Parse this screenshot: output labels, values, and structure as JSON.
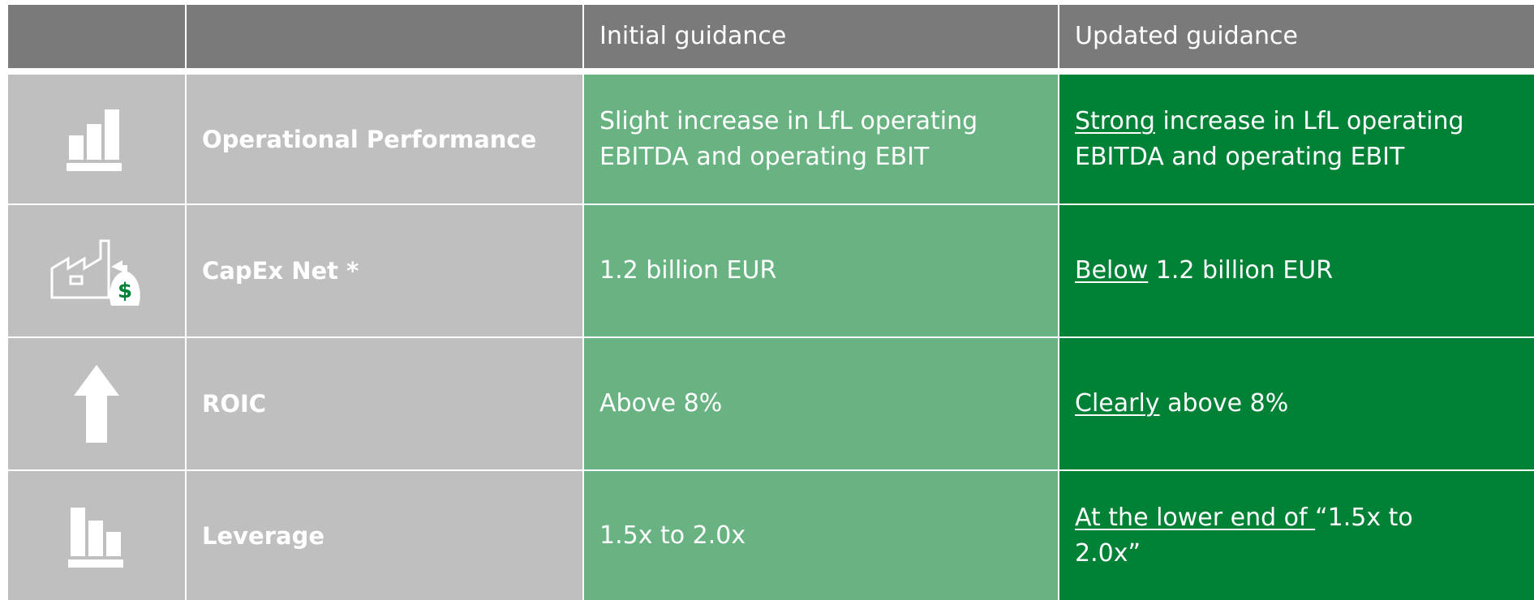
{
  "table": {
    "header": [
      "Initial guidance",
      "Updated guidance"
    ],
    "rows": [
      {
        "label": "Operational Performance",
        "initial": "Slight increase in LfL operating EBITDA and operating EBIT",
        "updated": {
          "emphasis": "Strong",
          "text": " increase in LfL operating EBITDA and operating EBIT"
        }
      },
      {
        "label": "CapEx Net *",
        "initial": "1.2 billion EUR",
        "updated": {
          "emphasis": "Below",
          "text": " 1.2 billion EUR"
        }
      },
      {
        "label": "ROIC",
        "initial": "Above 8%",
        "updated": {
          "emphasis": "Clearly",
          "text": " above 8%"
        }
      },
      {
        "label": "Leverage",
        "initial": "1.5x to 2.0x",
        "updated": {
          "emphasis": "At the lower end of ",
          "text": "“1.5x to 2.0x”"
        }
      }
    ]
  }
}
